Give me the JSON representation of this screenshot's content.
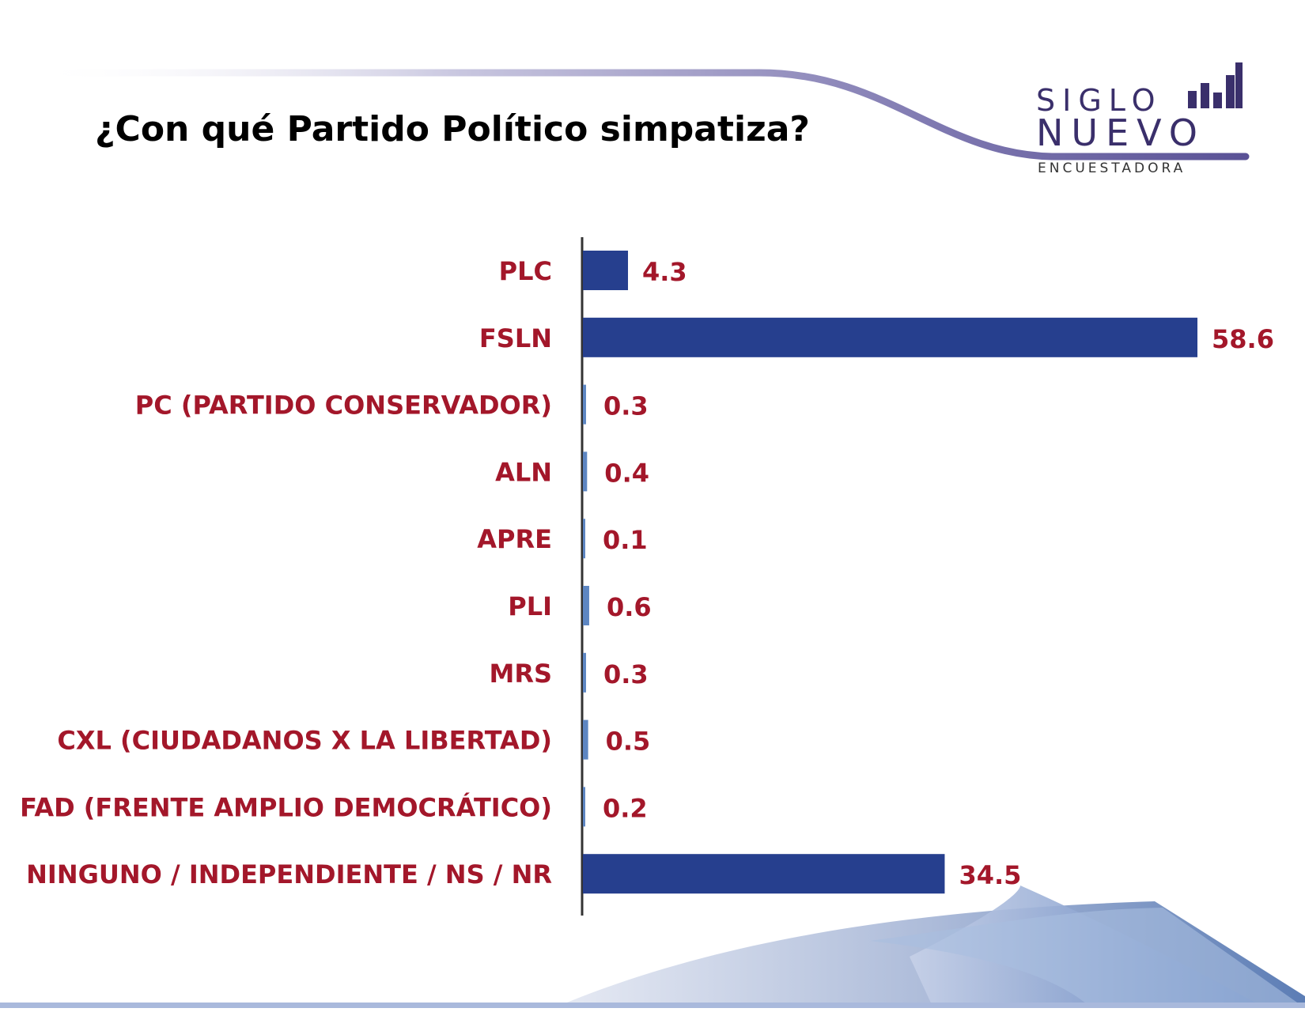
{
  "header": {
    "title": "¿Con qué Partido Político simpatiza?"
  },
  "logo": {
    "line1": "SIGLO",
    "line2": "NUEVO",
    "line3": "ENCUESTADORA"
  },
  "colors": {
    "bar": "#263f8e",
    "label": "#a3172a",
    "axis": "#333333",
    "logo": "#3a2f6b"
  },
  "chart_data": {
    "type": "bar",
    "orientation": "horizontal",
    "categories": [
      "PLC",
      "FSLN",
      "PC (PARTIDO CONSERVADOR)",
      "ALN",
      "APRE",
      "PLI",
      "MRS",
      "CXL (CIUDADANOS X LA LIBERTAD)",
      "FAD (FRENTE AMPLIO DEMOCRÁTICO)",
      "NINGUNO / INDEPENDIENTE / NS / NR"
    ],
    "values": [
      4.3,
      58.6,
      0.3,
      0.4,
      0.1,
      0.6,
      0.3,
      0.5,
      0.2,
      34.5
    ],
    "value_labels": [
      "4.3",
      "58.6",
      "0.3",
      "0.4",
      "0.1",
      "0.6",
      "0.3",
      "0.5",
      "0.2",
      "34.5"
    ],
    "title": "¿Con qué Partido Político simpatiza?",
    "xlabel": "",
    "ylabel": "",
    "xlim": [
      0,
      58.6
    ],
    "grid": false,
    "legend": "none"
  }
}
